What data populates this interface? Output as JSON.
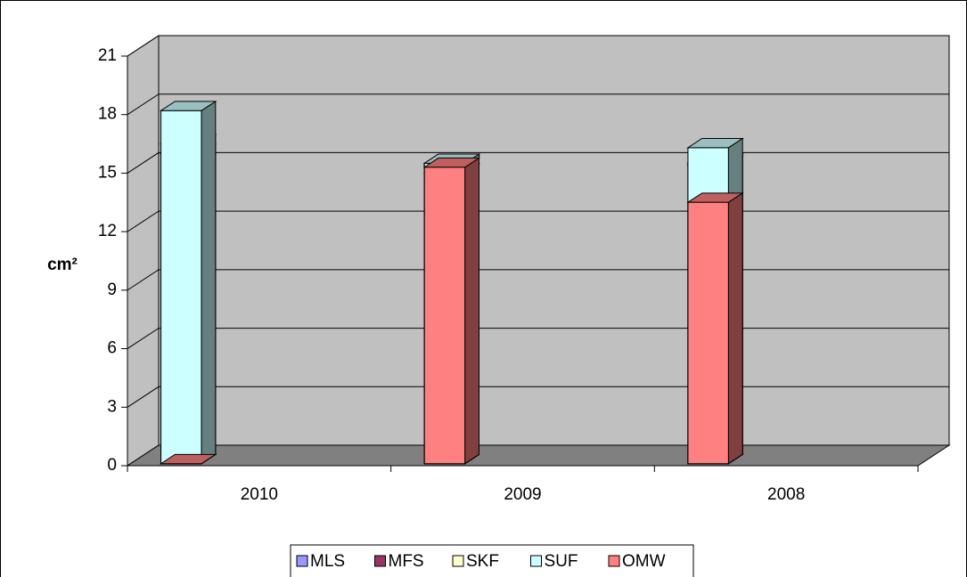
{
  "chart_data": {
    "type": "bar3d",
    "y_label": "cm²",
    "categories": [
      "2010",
      "2009",
      "2008"
    ],
    "series": [
      {
        "name": "MLS",
        "color": "#9999ff",
        "values": [
          0,
          14.9,
          15.4
        ]
      },
      {
        "name": "MFS",
        "color": "#993366",
        "values": [
          15.9,
          15.3,
          15.3
        ]
      },
      {
        "name": "SKF",
        "color": "#ffffcc",
        "values": [
          16.4,
          15.4,
          0
        ]
      },
      {
        "name": "SUF",
        "color": "#ccffff",
        "values": [
          18.1,
          15.4,
          16.2
        ]
      },
      {
        "name": "OMW",
        "color": "#ff8080",
        "values": [
          0,
          15.2,
          13.4
        ]
      }
    ],
    "ylim": [
      0,
      21
    ],
    "yticks": [
      0,
      3,
      6,
      9,
      12,
      15,
      18,
      21
    ],
    "grid": true,
    "wall_color": "#c0c0c0",
    "floor_color": "#808080",
    "legend": "bottom"
  }
}
